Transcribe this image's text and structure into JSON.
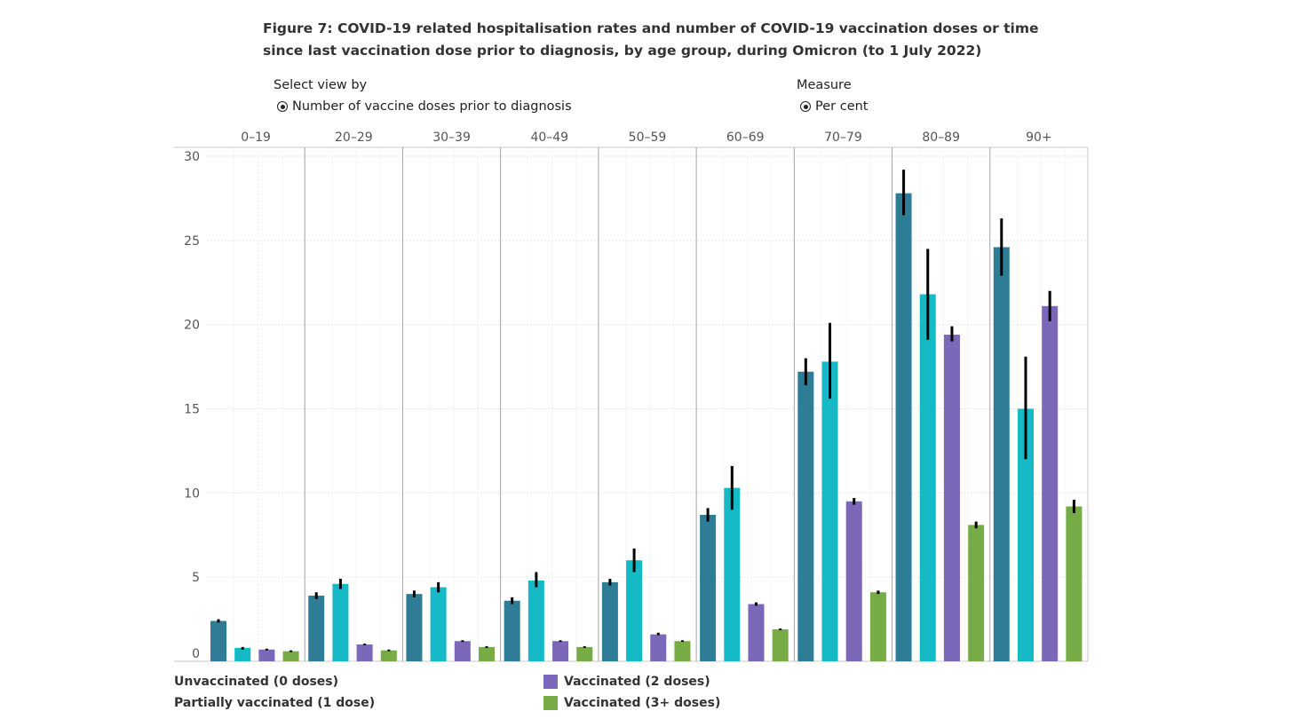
{
  "title": "Figure 7: COVID-19 related hospitalisation rates and number of COVID-19 vaccination doses or time since last vaccination dose prior to diagnosis, by age group, during Omicron (to 1 July 2022)",
  "controls": {
    "view": {
      "label": "Select view by",
      "selected": "Number of vaccine doses prior to diagnosis"
    },
    "measure": {
      "label": "Measure",
      "selected": "Per cent"
    }
  },
  "colors": {
    "Unvaccinated (0 doses)": "#2e7c95",
    "Partially vaccinated (1 dose)": "#15bac6",
    "Vaccinated (2 doses)": "#7b68b8",
    "Vaccinated (3+ doses)": "#76ab46",
    "error_bar": "#000000",
    "grid": "#e6e6e6",
    "divider": "#a6a6a6"
  },
  "chart_data": {
    "type": "bar",
    "categories": [
      "0–19",
      "20–29",
      "30–39",
      "40–49",
      "50–59",
      "60–69",
      "70–79",
      "80–89",
      "90+"
    ],
    "ylim": [
      0,
      30
    ],
    "yticks": [
      0,
      5,
      10,
      15,
      20,
      25,
      30
    ],
    "grid": true,
    "legend_position": "bottom",
    "series": [
      {
        "name": "Unvaccinated (0 doses)",
        "values": [
          2.4,
          3.9,
          4.0,
          3.6,
          4.7,
          8.7,
          17.2,
          27.8,
          24.6
        ],
        "ci": [
          [
            2.3,
            2.5
          ],
          [
            3.7,
            4.1
          ],
          [
            3.8,
            4.2
          ],
          [
            3.4,
            3.8
          ],
          [
            4.5,
            4.9
          ],
          [
            8.3,
            9.1
          ],
          [
            16.4,
            18.0
          ],
          [
            26.5,
            29.2
          ],
          [
            22.9,
            26.3
          ]
        ]
      },
      {
        "name": "Partially vaccinated (1 dose)",
        "values": [
          0.8,
          4.6,
          4.4,
          4.8,
          6.0,
          10.3,
          17.8,
          21.8,
          15.0
        ],
        "ci": [
          [
            0.7,
            0.85
          ],
          [
            4.3,
            4.9
          ],
          [
            4.1,
            4.7
          ],
          [
            4.4,
            5.3
          ],
          [
            5.3,
            6.7
          ],
          [
            9.0,
            11.6
          ],
          [
            15.6,
            20.1
          ],
          [
            19.1,
            24.5
          ],
          [
            12.0,
            18.1
          ]
        ]
      },
      {
        "name": "Vaccinated (2 doses)",
        "values": [
          0.7,
          1.0,
          1.2,
          1.2,
          1.6,
          3.4,
          9.5,
          19.4,
          21.1
        ],
        "ci": [
          [
            0.65,
            0.75
          ],
          [
            0.95,
            1.05
          ],
          [
            1.15,
            1.25
          ],
          [
            1.15,
            1.25
          ],
          [
            1.55,
            1.7
          ],
          [
            3.3,
            3.5
          ],
          [
            9.3,
            9.7
          ],
          [
            19.0,
            19.9
          ],
          [
            20.2,
            22.0
          ]
        ]
      },
      {
        "name": "Vaccinated (3+ doses)",
        "values": [
          0.6,
          0.65,
          0.85,
          0.85,
          1.2,
          1.9,
          4.1,
          8.1,
          9.2
        ],
        "ci": [
          [
            0.55,
            0.65
          ],
          [
            0.6,
            0.7
          ],
          [
            0.8,
            0.9
          ],
          [
            0.8,
            0.9
          ],
          [
            1.15,
            1.25
          ],
          [
            1.85,
            1.95
          ],
          [
            4.0,
            4.2
          ],
          [
            7.9,
            8.3
          ],
          [
            8.8,
            9.6
          ]
        ]
      }
    ]
  }
}
